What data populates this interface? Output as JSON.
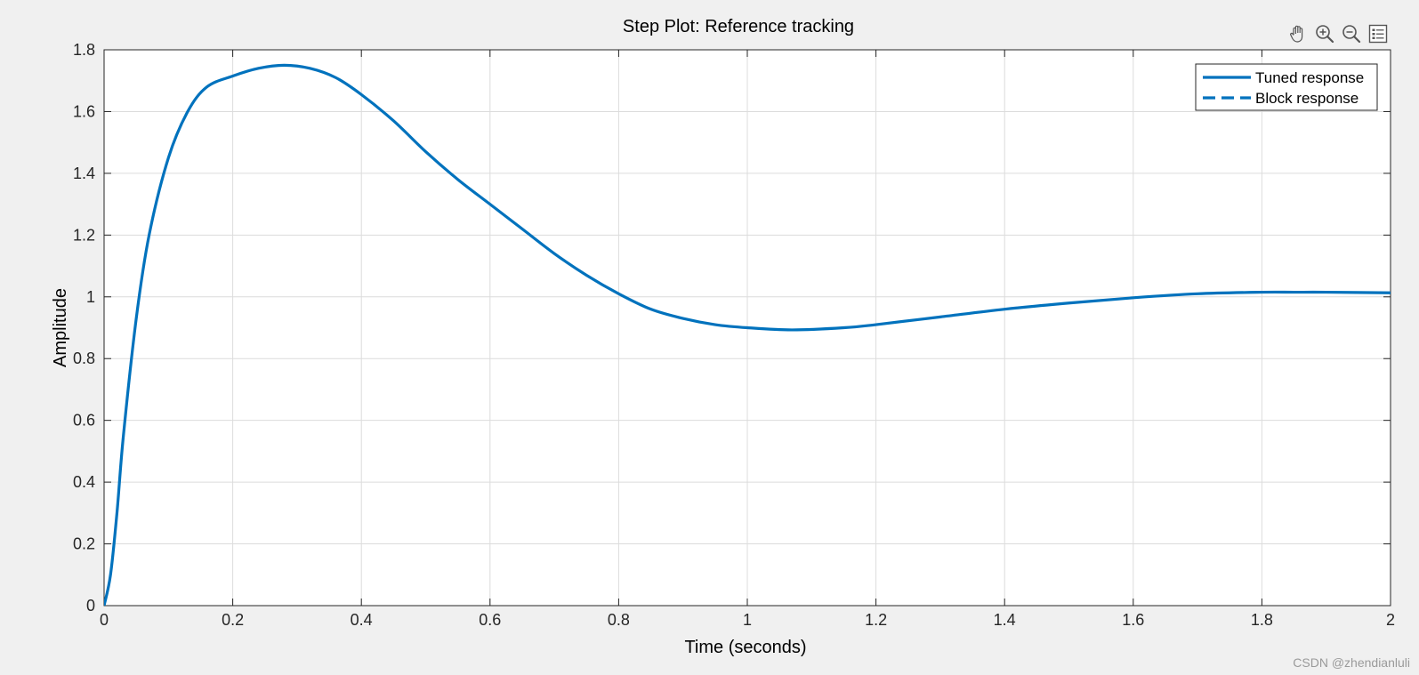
{
  "chart_data": {
    "type": "line",
    "title": "Step Plot: Reference tracking",
    "xlabel": "Time (seconds)",
    "ylabel": "Amplitude",
    "xlim": [
      0,
      2
    ],
    "ylim": [
      0,
      1.8
    ],
    "xticks": [
      0,
      0.2,
      0.4,
      0.6,
      0.8,
      1,
      1.2,
      1.4,
      1.6,
      1.8,
      2
    ],
    "yticks": [
      0,
      0.2,
      0.4,
      0.6,
      0.8,
      1,
      1.2,
      1.4,
      1.6,
      1.8
    ],
    "xtick_labels": [
      "0",
      "0.2",
      "0.4",
      "0.6",
      "0.8",
      "1",
      "1.2",
      "1.4",
      "1.6",
      "1.8",
      "2"
    ],
    "ytick_labels": [
      "0",
      "0.2",
      "0.4",
      "0.6",
      "0.8",
      "1",
      "1.2",
      "1.4",
      "1.6",
      "1.8"
    ],
    "grid": true,
    "legend_position": "top-right",
    "series": [
      {
        "name": "Tuned response",
        "style": "solid",
        "color": "#0072bd",
        "x": [
          0,
          0.01,
          0.02,
          0.03,
          0.05,
          0.07,
          0.1,
          0.13,
          0.16,
          0.2,
          0.24,
          0.28,
          0.32,
          0.36,
          0.4,
          0.45,
          0.5,
          0.55,
          0.6,
          0.65,
          0.7,
          0.75,
          0.8,
          0.85,
          0.9,
          0.95,
          1.0,
          1.07,
          1.15,
          1.2,
          1.3,
          1.4,
          1.5,
          1.6,
          1.7,
          1.8,
          1.85,
          1.9,
          2.0
        ],
        "y": [
          0,
          0.1,
          0.3,
          0.55,
          0.93,
          1.2,
          1.45,
          1.6,
          1.68,
          1.715,
          1.74,
          1.75,
          1.74,
          1.71,
          1.655,
          1.57,
          1.47,
          1.38,
          1.3,
          1.22,
          1.14,
          1.07,
          1.01,
          0.96,
          0.93,
          0.91,
          0.9,
          0.893,
          0.9,
          0.91,
          0.935,
          0.96,
          0.98,
          0.997,
          1.01,
          1.015,
          1.015,
          1.015,
          1.013
        ]
      },
      {
        "name": "Block response",
        "style": "dashed",
        "color": "#0072bd",
        "x": [],
        "y": []
      }
    ]
  },
  "toolbar": {
    "icons": [
      "pan-icon",
      "zoom-in-icon",
      "zoom-out-icon",
      "legend-toggle-icon"
    ]
  },
  "watermark": "CSDN @zhendianluli"
}
